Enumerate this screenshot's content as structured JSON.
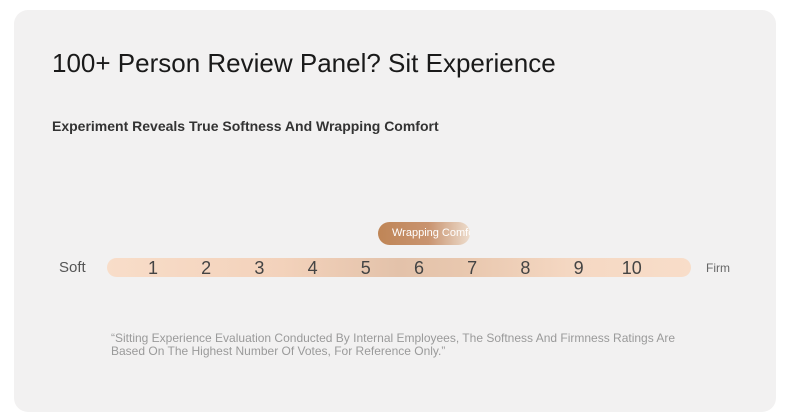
{
  "header": {
    "title": "100+ Person Review Panel? Sit Experience",
    "subtitle": "Experiment Reveals True Softness And Wrapping Comfort"
  },
  "scale": {
    "left_label": "Soft",
    "right_label": "Firm",
    "ticks": [
      1,
      2,
      3,
      4,
      5,
      6,
      7,
      8,
      9,
      10
    ],
    "badge": "Wrapping Comfort"
  },
  "footnote": "“Sitting Experience Evaluation Conducted By Internal Employees, The Softness And Firmness Ratings Are Based On The Highest Number Of Votes, For Reference Only.”"
}
